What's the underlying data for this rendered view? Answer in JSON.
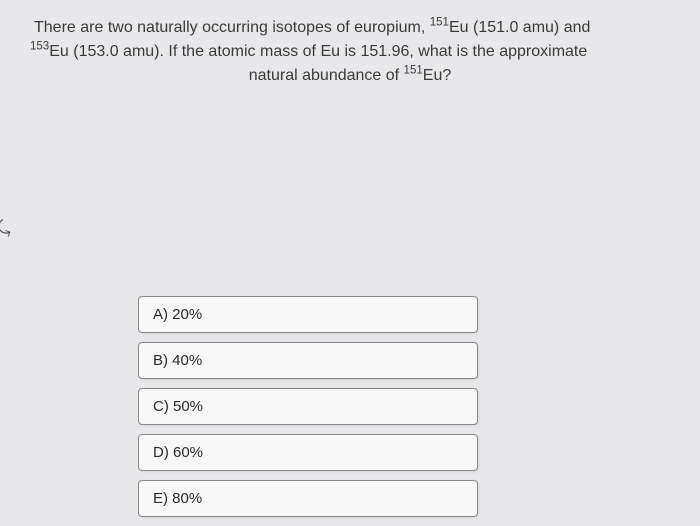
{
  "question": {
    "line1_pre": "There are two naturally occurring isotopes of europium, ",
    "sup1": "151",
    "line1_post": "Eu (151.0 amu) and",
    "sup2": "153",
    "line2_post": "Eu (153.0 amu). If the atomic mass of Eu is 151.96, what is the approximate",
    "line3_pre": "natural abundance of ",
    "sup3": "151",
    "line3_post": "Eu?"
  },
  "options": {
    "a": "A) 20%",
    "b": "B) 40%",
    "c": "C) 50%",
    "d": "D) 60%",
    "e": "E) 80%"
  },
  "styling": {
    "background_color": "#e8e8ea",
    "option_bg": "#f8f8f9",
    "option_border": "#888888",
    "text_color": "#3a3a3a",
    "option_text_color": "#2a2a2a",
    "question_fontsize": 16,
    "option_fontsize": 15
  }
}
